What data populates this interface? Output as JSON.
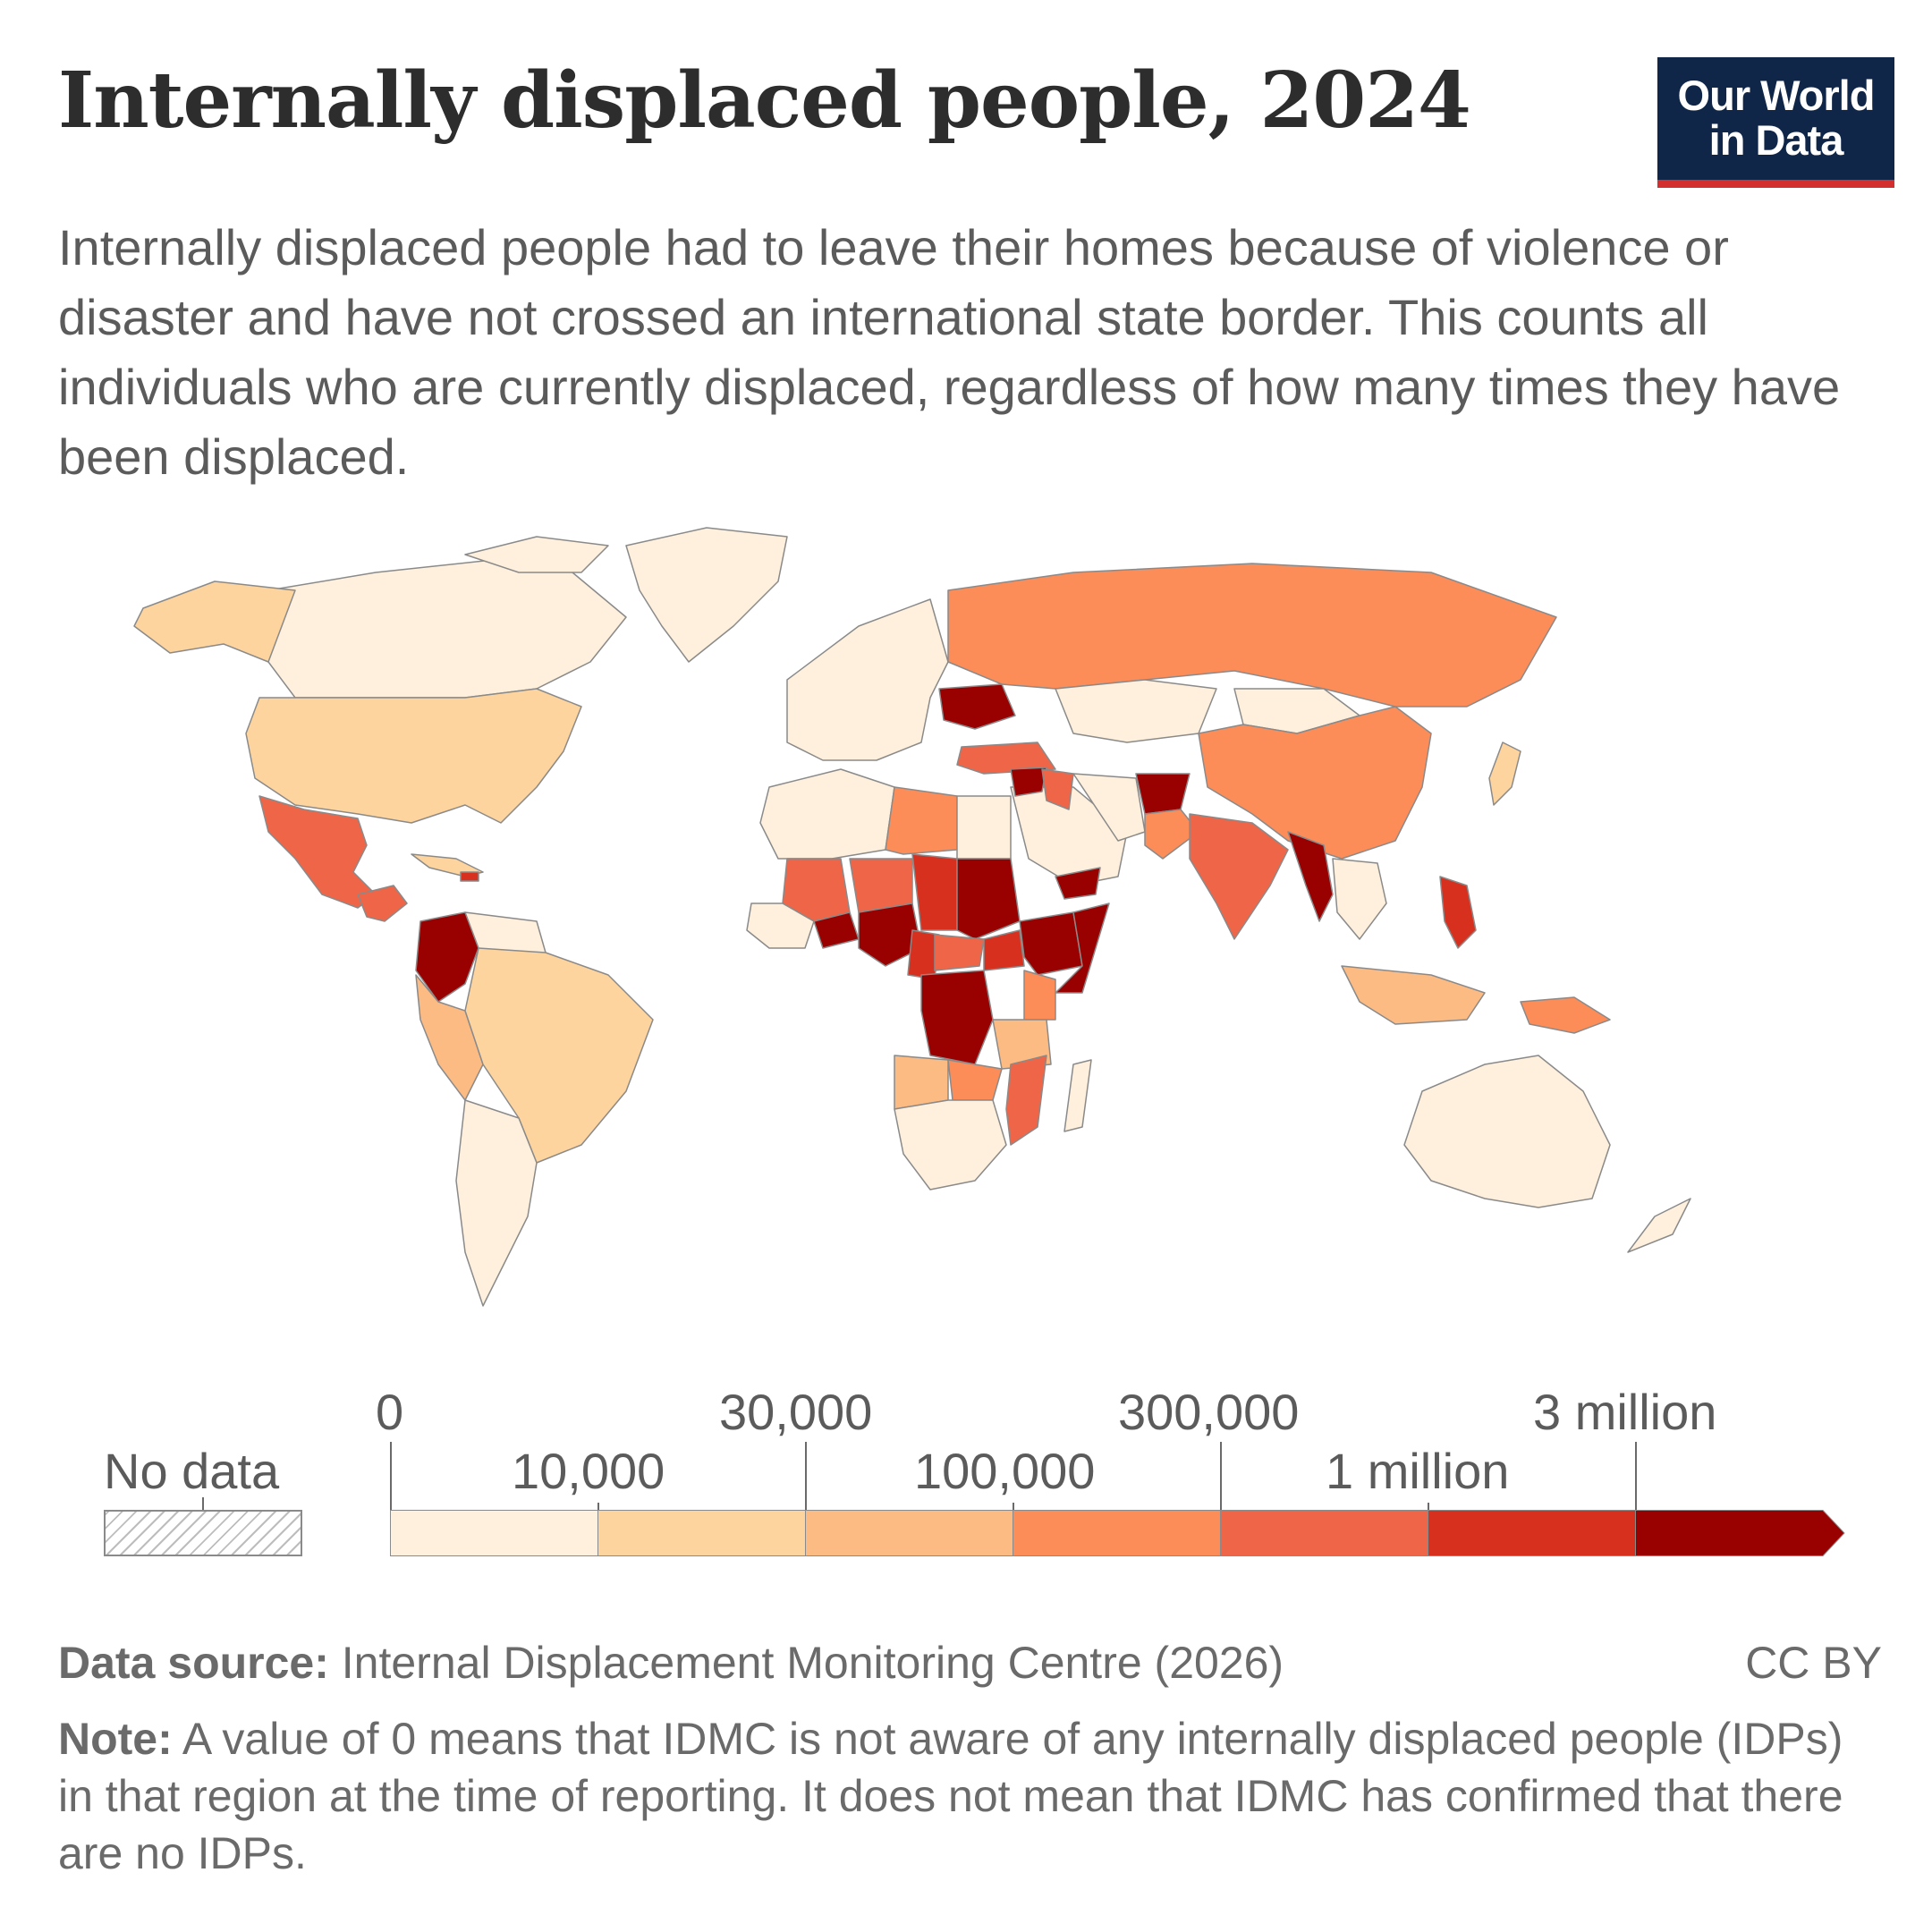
{
  "header": {
    "title": "Internally displaced people, 2024",
    "subtitle": "Internally displaced people had to leave their homes because of violence or disaster and have not crossed an international state border. This counts all individuals who are currently displaced, regardless of how many times they have been displaced.",
    "logo_line1": "Our World",
    "logo_line2": "in Data"
  },
  "legend": {
    "no_data_label": "No data",
    "bins": [
      {
        "label_upper": "0",
        "color": "#fef0dc"
      },
      {
        "label_upper": "10,000",
        "color": "#fdd49e"
      },
      {
        "label_upper": "30,000",
        "color": "#fdbb84"
      },
      {
        "label_upper": "100,000",
        "color": "#fc8d59"
      },
      {
        "label_upper": "300,000",
        "color": "#ef6548"
      },
      {
        "label_upper": "1 million",
        "color": "#d7301f"
      },
      {
        "label_upper": "3 million",
        "color": "#990000"
      }
    ],
    "tick_labels": [
      "0",
      "10,000",
      "30,000",
      "100,000",
      "300,000",
      "1 million",
      "3 million"
    ]
  },
  "chart_data": {
    "type": "choropleth",
    "title": "Internally displaced people, 2024",
    "year": 2024,
    "scale": [
      "0",
      "10,000",
      "30,000",
      "100,000",
      "300,000",
      "1 million",
      "3 million"
    ],
    "colors": [
      "#fef0dc",
      "#fdd49e",
      "#fdbb84",
      "#fc8d59",
      "#ef6548",
      "#d7301f",
      "#990000"
    ],
    "regions": [
      {
        "name": "Canada",
        "bin": 0
      },
      {
        "name": "Greenland",
        "bin": 0
      },
      {
        "name": "United States",
        "bin": 1
      },
      {
        "name": "Mexico",
        "bin": 4
      },
      {
        "name": "Central America",
        "bin": 4
      },
      {
        "name": "Colombia",
        "bin": 6
      },
      {
        "name": "Venezuela",
        "bin": 0
      },
      {
        "name": "Brazil",
        "bin": 1
      },
      {
        "name": "Peru",
        "bin": 2
      },
      {
        "name": "Argentina/Chile",
        "bin": 0
      },
      {
        "name": "Russia",
        "bin": 3
      },
      {
        "name": "Ukraine",
        "bin": 6
      },
      {
        "name": "Europe",
        "bin": 0
      },
      {
        "name": "Turkey",
        "bin": 4
      },
      {
        "name": "Syria",
        "bin": 6
      },
      {
        "name": "Iraq",
        "bin": 4
      },
      {
        "name": "Yemen",
        "bin": 6
      },
      {
        "name": "Afghanistan",
        "bin": 6
      },
      {
        "name": "Pakistan",
        "bin": 3
      },
      {
        "name": "India",
        "bin": 4
      },
      {
        "name": "Myanmar",
        "bin": 6
      },
      {
        "name": "China",
        "bin": 3
      },
      {
        "name": "Kazakhstan",
        "bin": 0
      },
      {
        "name": "Mongolia",
        "bin": 0
      },
      {
        "name": "Japan",
        "bin": 1
      },
      {
        "name": "Philippines",
        "bin": 5
      },
      {
        "name": "Indonesia",
        "bin": 2
      },
      {
        "name": "Papua New Guinea",
        "bin": 3
      },
      {
        "name": "Australia",
        "bin": 0
      },
      {
        "name": "New Zealand",
        "bin": 0
      },
      {
        "name": "Algeria",
        "bin": 0
      },
      {
        "name": "Libya",
        "bin": 3
      },
      {
        "name": "Egypt",
        "bin": 0
      },
      {
        "name": "Mali",
        "bin": 4
      },
      {
        "name": "Niger",
        "bin": 4
      },
      {
        "name": "Chad",
        "bin": 5
      },
      {
        "name": "Sudan",
        "bin": 6
      },
      {
        "name": "Nigeria",
        "bin": 6
      },
      {
        "name": "Burkina Faso",
        "bin": 6
      },
      {
        "name": "Cameroon",
        "bin": 5
      },
      {
        "name": "Central African Republic",
        "bin": 4
      },
      {
        "name": "South Sudan",
        "bin": 5
      },
      {
        "name": "Ethiopia",
        "bin": 6
      },
      {
        "name": "Somalia",
        "bin": 6
      },
      {
        "name": "DR Congo",
        "bin": 6
      },
      {
        "name": "Kenya",
        "bin": 3
      },
      {
        "name": "Tanzania",
        "bin": 2
      },
      {
        "name": "Angola",
        "bin": 2
      },
      {
        "name": "Mozambique",
        "bin": 4
      },
      {
        "name": "Zambia",
        "bin": 3
      },
      {
        "name": "South Africa",
        "bin": 0
      },
      {
        "name": "Madagascar",
        "bin": 0
      },
      {
        "name": "Saudi Arabia",
        "bin": 0
      }
    ]
  },
  "footer": {
    "source_label": "Data source:",
    "source_text": " Internal Displacement Monitoring Centre (2026)",
    "license": "CC BY",
    "note_label": "Note:",
    "note_text": " A value of 0 means that IDMC is not aware of any internally displaced people (IDPs) in that region at the time of reporting. It does not mean that IDMC has confirmed that there are no IDPs."
  }
}
